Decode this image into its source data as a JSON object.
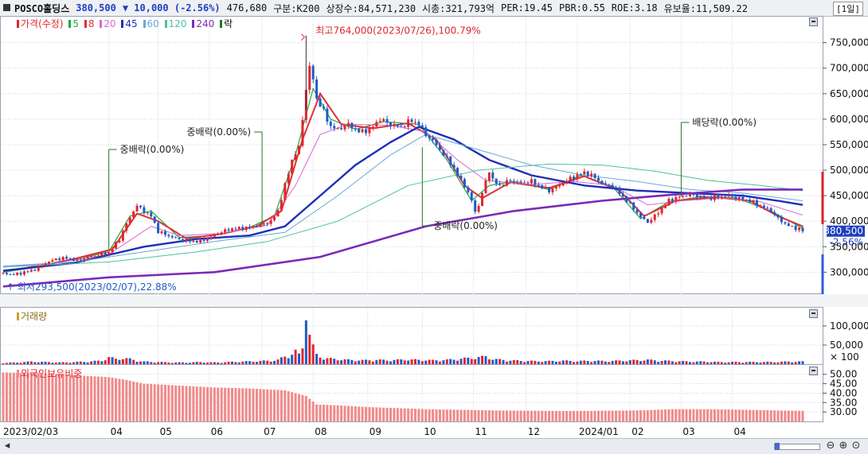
{
  "header": {
    "name": "POSCO홀딩스",
    "price": "380,500",
    "change_icon": "down-triangle-icon",
    "change": "▼ 10,000 (-2.56%)",
    "volume": "476,680",
    "market": "구분:K200",
    "shares": "상장수:84,571,230",
    "market_cap": "시총:321,793억",
    "per": "PER:19.45",
    "pbr": "PBR:0.55",
    "roe": "ROE:3.18",
    "float": "유보율:11,509.22",
    "period": "[1일]"
  },
  "legend": {
    "price": "가격(수정)",
    "ma": [
      {
        "label": "5",
        "color": "#1faa3a"
      },
      {
        "label": "8",
        "color": "#e0303a"
      },
      {
        "label": "20",
        "color": "#d86ad0"
      },
      {
        "label": "45",
        "color": "#1d2fb8"
      },
      {
        "label": "60",
        "color": "#6aa8d8"
      },
      {
        "label": "120",
        "color": "#4fc0a0"
      },
      {
        "label": "240",
        "color": "#7a2ab8"
      }
    ],
    "drop": "락",
    "volume": "거래량",
    "foreign": "외국인보유비중"
  },
  "colors": {
    "up": "#e0262e",
    "down": "#1f5cc8",
    "grid": "#d0d4dc",
    "foreign_bar": "#f08a8a"
  },
  "current_tag": {
    "price": "380,500",
    "pct": "-2.56%"
  },
  "chart_data": {
    "type": "candlestick",
    "y_ticks": [
      "750,000",
      "700,000",
      "650,000",
      "600,000",
      "550,000",
      "500,000",
      "450,000",
      "400,000",
      "350,000",
      "300,000"
    ],
    "ylim": [
      260000,
      790000
    ],
    "x_ticks": [
      "2023/02/03",
      "04",
      "05",
      "06",
      "07",
      "08",
      "09",
      "10",
      "11",
      "12",
      "2024/01",
      "02",
      "03",
      "04"
    ],
    "annotations": [
      {
        "text": "최고764,000(2023/07/26),100.79%"
      },
      {
        "text": "최저293,500(2023/02/07),22.88%"
      },
      {
        "text": "중배락(0.00%)",
        "date": "04"
      },
      {
        "text": "중배락(0.00%)",
        "date": "07"
      },
      {
        "text": "중배락(0.00%)",
        "date": "10"
      },
      {
        "text": "배당락(0.00%)",
        "date": "03"
      }
    ],
    "price_series": [
      [
        0,
        298000
      ],
      [
        6,
        295000
      ],
      [
        12,
        300000
      ],
      [
        18,
        305000
      ],
      [
        24,
        318000
      ],
      [
        30,
        326000
      ],
      [
        36,
        328000
      ],
      [
        42,
        322000
      ],
      [
        48,
        330000
      ],
      [
        54,
        334000
      ],
      [
        60,
        338000
      ],
      [
        66,
        365000
      ],
      [
        70,
        395000
      ],
      [
        74,
        420000
      ],
      [
        76,
        430000
      ],
      [
        80,
        420000
      ],
      [
        84,
        410000
      ],
      [
        88,
        380000
      ],
      [
        92,
        374000
      ],
      [
        98,
        366000
      ],
      [
        104,
        362000
      ],
      [
        110,
        360000
      ],
      [
        116,
        366000
      ],
      [
        122,
        376000
      ],
      [
        128,
        384000
      ],
      [
        134,
        386000
      ],
      [
        140,
        388000
      ],
      [
        146,
        392000
      ],
      [
        152,
        400000
      ],
      [
        156,
        420000
      ],
      [
        160,
        470000
      ],
      [
        164,
        520000
      ],
      [
        168,
        545000
      ],
      [
        170,
        600000
      ],
      [
        172,
        660000
      ],
      [
        174,
        700000
      ],
      [
        176,
        680000
      ],
      [
        178,
        640000
      ],
      [
        182,
        615000
      ],
      [
        186,
        585000
      ],
      [
        190,
        580000
      ],
      [
        196,
        590000
      ],
      [
        202,
        575000
      ],
      [
        208,
        580000
      ],
      [
        214,
        600000
      ],
      [
        220,
        590000
      ],
      [
        226,
        585000
      ],
      [
        232,
        598000
      ],
      [
        236,
        590000
      ],
      [
        240,
        570000
      ],
      [
        246,
        550000
      ],
      [
        250,
        530000
      ],
      [
        254,
        515000
      ],
      [
        258,
        490000
      ],
      [
        262,
        470000
      ],
      [
        266,
        440000
      ],
      [
        268,
        420000
      ],
      [
        270,
        430000
      ],
      [
        272,
        455000
      ],
      [
        276,
        500000
      ],
      [
        278,
        480000
      ],
      [
        282,
        470000
      ],
      [
        288,
        480000
      ],
      [
        294,
        475000
      ],
      [
        300,
        478000
      ],
      [
        306,
        466000
      ],
      [
        310,
        460000
      ],
      [
        316,
        470000
      ],
      [
        322,
        484000
      ],
      [
        326,
        490000
      ],
      [
        330,
        495000
      ],
      [
        334,
        490000
      ],
      [
        338,
        480000
      ],
      [
        342,
        470000
      ],
      [
        346,
        470000
      ],
      [
        350,
        455000
      ],
      [
        354,
        440000
      ],
      [
        358,
        425000
      ],
      [
        362,
        408000
      ],
      [
        366,
        398000
      ],
      [
        370,
        410000
      ],
      [
        374,
        425000
      ],
      [
        378,
        440000
      ],
      [
        384,
        448000
      ],
      [
        390,
        452000
      ],
      [
        396,
        448000
      ],
      [
        400,
        445000
      ],
      [
        406,
        448000
      ],
      [
        412,
        450000
      ],
      [
        418,
        445000
      ],
      [
        424,
        440000
      ],
      [
        430,
        430000
      ],
      [
        436,
        420000
      ],
      [
        440,
        405000
      ],
      [
        444,
        395000
      ],
      [
        448,
        388000
      ],
      [
        452,
        385000
      ],
      [
        454,
        380500
      ]
    ],
    "ma_series": [
      {
        "name": "5",
        "values": [
          [
            0,
            300000
          ],
          [
            20,
            310000
          ],
          [
            40,
            325000
          ],
          [
            60,
            340000
          ],
          [
            72,
            410000
          ],
          [
            84,
            420000
          ],
          [
            100,
            368000
          ],
          [
            120,
            372000
          ],
          [
            140,
            388000
          ],
          [
            154,
            410000
          ],
          [
            166,
            530000
          ],
          [
            176,
            660000
          ],
          [
            186,
            600000
          ],
          [
            200,
            580000
          ],
          [
            216,
            595000
          ],
          [
            236,
            590000
          ],
          [
            252,
            520000
          ],
          [
            266,
            440000
          ],
          [
            276,
            470000
          ],
          [
            290,
            478000
          ],
          [
            310,
            462000
          ],
          [
            328,
            490000
          ],
          [
            346,
            468000
          ],
          [
            362,
            405000
          ],
          [
            378,
            438000
          ],
          [
            396,
            448000
          ],
          [
            416,
            446000
          ],
          [
            436,
            420000
          ],
          [
            454,
            386000
          ]
        ]
      },
      {
        "name": "8",
        "values": [
          [
            0,
            302000
          ],
          [
            20,
            312000
          ],
          [
            40,
            326000
          ],
          [
            62,
            345000
          ],
          [
            76,
            415000
          ],
          [
            88,
            400000
          ],
          [
            104,
            366000
          ],
          [
            124,
            375000
          ],
          [
            144,
            390000
          ],
          [
            158,
            420000
          ],
          [
            170,
            560000
          ],
          [
            180,
            650000
          ],
          [
            192,
            590000
          ],
          [
            210,
            582000
          ],
          [
            230,
            592000
          ],
          [
            246,
            560000
          ],
          [
            262,
            470000
          ],
          [
            272,
            445000
          ],
          [
            288,
            476000
          ],
          [
            310,
            465000
          ],
          [
            330,
            488000
          ],
          [
            350,
            460000
          ],
          [
            364,
            410000
          ],
          [
            382,
            440000
          ],
          [
            404,
            447000
          ],
          [
            424,
            440000
          ],
          [
            440,
            410000
          ],
          [
            454,
            390000
          ]
        ]
      },
      {
        "name": "20",
        "values": [
          [
            0,
            310000
          ],
          [
            30,
            318000
          ],
          [
            60,
            335000
          ],
          [
            84,
            390000
          ],
          [
            100,
            372000
          ],
          [
            124,
            376000
          ],
          [
            150,
            392000
          ],
          [
            166,
            470000
          ],
          [
            180,
            570000
          ],
          [
            196,
            590000
          ],
          [
            220,
            588000
          ],
          [
            240,
            575000
          ],
          [
            258,
            520000
          ],
          [
            274,
            480000
          ],
          [
            300,
            472000
          ],
          [
            324,
            478000
          ],
          [
            346,
            470000
          ],
          [
            366,
            432000
          ],
          [
            386,
            440000
          ],
          [
            410,
            446000
          ],
          [
            430,
            438000
          ],
          [
            454,
            412000
          ]
        ]
      },
      {
        "name": "45",
        "values": [
          [
            0,
            303000
          ],
          [
            40,
            318000
          ],
          [
            80,
            350000
          ],
          [
            110,
            365000
          ],
          [
            140,
            372000
          ],
          [
            160,
            390000
          ],
          [
            180,
            450000
          ],
          [
            200,
            510000
          ],
          [
            220,
            555000
          ],
          [
            236,
            585000
          ],
          [
            256,
            560000
          ],
          [
            276,
            520000
          ],
          [
            300,
            490000
          ],
          [
            330,
            470000
          ],
          [
            360,
            460000
          ],
          [
            390,
            455000
          ],
          [
            420,
            450000
          ],
          [
            440,
            440000
          ],
          [
            454,
            432000
          ]
        ]
      },
      {
        "name": "60",
        "values": [
          [
            0,
            312000
          ],
          [
            40,
            320000
          ],
          [
            80,
            340000
          ],
          [
            120,
            360000
          ],
          [
            160,
            378000
          ],
          [
            190,
            450000
          ],
          [
            220,
            530000
          ],
          [
            240,
            570000
          ],
          [
            270,
            540000
          ],
          [
            300,
            510000
          ],
          [
            330,
            490000
          ],
          [
            360,
            478000
          ],
          [
            390,
            462000
          ],
          [
            420,
            455000
          ],
          [
            454,
            440000
          ]
        ]
      },
      {
        "name": "120",
        "values": [
          [
            0,
            310000
          ],
          [
            60,
            320000
          ],
          [
            110,
            340000
          ],
          [
            150,
            360000
          ],
          [
            190,
            400000
          ],
          [
            230,
            470000
          ],
          [
            270,
            500000
          ],
          [
            310,
            512000
          ],
          [
            340,
            510000
          ],
          [
            370,
            498000
          ],
          [
            400,
            480000
          ],
          [
            430,
            470000
          ],
          [
            454,
            460000
          ]
        ]
      },
      {
        "name": "240",
        "values": [
          [
            0,
            272000
          ],
          [
            60,
            290000
          ],
          [
            120,
            300000
          ],
          [
            180,
            330000
          ],
          [
            240,
            390000
          ],
          [
            290,
            420000
          ],
          [
            340,
            440000
          ],
          [
            380,
            452000
          ],
          [
            420,
            462000
          ],
          [
            454,
            462000
          ]
        ]
      }
    ],
    "volume_axis": [
      "100,000",
      "50,000",
      "× 100"
    ],
    "volume_series": [
      [
        0,
        3
      ],
      [
        8,
        4
      ],
      [
        16,
        6
      ],
      [
        24,
        5
      ],
      [
        32,
        4
      ],
      [
        40,
        5
      ],
      [
        48,
        6
      ],
      [
        56,
        8
      ],
      [
        60,
        16
      ],
      [
        64,
        12
      ],
      [
        68,
        14
      ],
      [
        72,
        12
      ],
      [
        76,
        8
      ],
      [
        80,
        6
      ],
      [
        88,
        5
      ],
      [
        96,
        4
      ],
      [
        104,
        4
      ],
      [
        112,
        5
      ],
      [
        120,
        4
      ],
      [
        128,
        5
      ],
      [
        136,
        6
      ],
      [
        144,
        7
      ],
      [
        152,
        8
      ],
      [
        156,
        10
      ],
      [
        160,
        18
      ],
      [
        164,
        24
      ],
      [
        166,
        30
      ],
      [
        168,
        22
      ],
      [
        170,
        40
      ],
      [
        172,
        115
      ],
      [
        174,
        70
      ],
      [
        176,
        40
      ],
      [
        178,
        22
      ],
      [
        182,
        14
      ],
      [
        188,
        12
      ],
      [
        196,
        10
      ],
      [
        204,
        9
      ],
      [
        212,
        10
      ],
      [
        220,
        9
      ],
      [
        228,
        11
      ],
      [
        236,
        10
      ],
      [
        244,
        9
      ],
      [
        252,
        10
      ],
      [
        258,
        12
      ],
      [
        264,
        14
      ],
      [
        270,
        16
      ],
      [
        274,
        18
      ],
      [
        278,
        12
      ],
      [
        286,
        9
      ],
      [
        294,
        8
      ],
      [
        302,
        7
      ],
      [
        310,
        7
      ],
      [
        318,
        8
      ],
      [
        326,
        7
      ],
      [
        334,
        8
      ],
      [
        342,
        7
      ],
      [
        350,
        8
      ],
      [
        358,
        9
      ],
      [
        366,
        10
      ],
      [
        374,
        8
      ],
      [
        382,
        7
      ],
      [
        390,
        6
      ],
      [
        398,
        6
      ],
      [
        406,
        5
      ],
      [
        414,
        5
      ],
      [
        422,
        5
      ],
      [
        430,
        5
      ],
      [
        438,
        5
      ],
      [
        446,
        6
      ],
      [
        454,
        6
      ]
    ],
    "foreign_axis": [
      "50.00",
      "45.00",
      "40.00",
      "35.00",
      "30.00"
    ],
    "foreign_series": [
      [
        0,
        51
      ],
      [
        20,
        50.5
      ],
      [
        40,
        49.5
      ],
      [
        60,
        48.5
      ],
      [
        70,
        47
      ],
      [
        80,
        45
      ],
      [
        100,
        44
      ],
      [
        120,
        43
      ],
      [
        140,
        42.5
      ],
      [
        160,
        41.5
      ],
      [
        172,
        38.5
      ],
      [
        178,
        34
      ],
      [
        190,
        33.5
      ],
      [
        210,
        32.5
      ],
      [
        240,
        31.5
      ],
      [
        280,
        30.8
      ],
      [
        320,
        30.5
      ],
      [
        360,
        30.8
      ],
      [
        380,
        31.5
      ],
      [
        400,
        31.5
      ],
      [
        420,
        31.2
      ],
      [
        440,
        30.8
      ],
      [
        454,
        30.6
      ]
    ],
    "foreign_ylim": [
      25,
      52
    ]
  }
}
